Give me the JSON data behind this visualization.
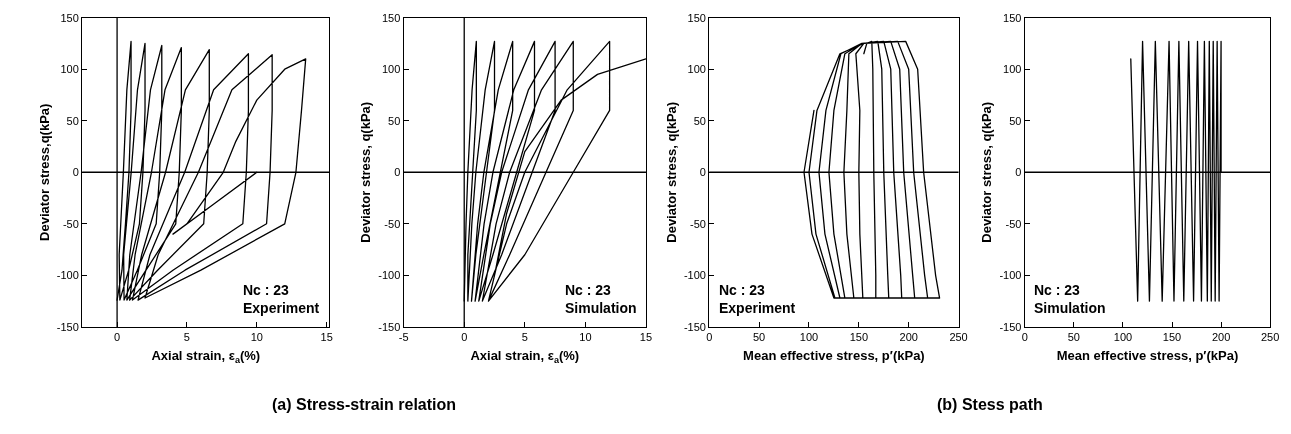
{
  "chart_data": [
    {
      "type": "line",
      "xlabel": "Axial strain, ε$_{a}$(%)",
      "ylabel": "Deviator stress,q(kPa)",
      "xlim": [
        -2.5,
        15.2
      ],
      "xticks": [
        0,
        5,
        10,
        15
      ],
      "ylim": [
        -150,
        150
      ],
      "yticks": [
        -150,
        -100,
        -50,
        0,
        50,
        100,
        150
      ],
      "ref_lines": [
        {
          "axis": "y",
          "value": 0,
          "color": "#000000"
        },
        {
          "axis": "x",
          "value": 0,
          "color": "#000000"
        }
      ],
      "annotations": [
        "Nc : 23\nExperiment",
        "(a) Stress-strain relation"
      ],
      "series": [
        {
          "color": "#000000",
          "x": [
            0,
            0.35,
            0.6,
            0.85,
            1,
            1,
            0.7,
            0.45,
            0.15,
            0.2,
            0.83,
            1.6,
            1.85,
            2,
            2,
            1.46,
            1.01,
            0.47,
            0.5,
            1.45,
            2.8,
            3.05,
            3.2,
            3.2,
            2.39,
            1.72,
            0.91,
            0.7,
            2.07,
            4.2,
            4.45,
            4.6,
            4.6,
            3.43,
            2.46,
            1.29,
            0.9,
            2.9,
            6.2,
            6.45,
            6.6,
            6.6,
            4.89,
            3.47,
            1.76,
            1.1,
            4.0,
            9.0,
            9.25,
            9.4,
            9.4,
            6.91,
            4.84,
            2.35,
            1.5,
            4.86,
            10.7,
            10.95,
            11.1,
            11.1,
            8.22,
            5.82,
            2.94,
            2,
            6,
            12,
            12.8,
            13.2,
            13.5,
            12,
            10,
            8.5,
            7.6,
            5,
            4,
            7,
            10
          ],
          "values": [
            -124,
            -95,
            -50,
            0,
            60,
            127,
            80,
            0,
            -80,
            -124,
            -95,
            -50,
            0,
            60,
            125,
            80,
            0,
            -80,
            -124,
            -95,
            -50,
            0,
            60,
            123,
            80,
            0,
            -80,
            -124,
            -95,
            -50,
            0,
            60,
            121,
            80,
            0,
            -80,
            -124,
            -95,
            -50,
            0,
            60,
            119,
            80,
            0,
            -80,
            -124,
            -95,
            -50,
            0,
            60,
            115,
            80,
            0,
            -80,
            -124,
            -95,
            -50,
            0,
            60,
            114,
            80,
            0,
            -80,
            -122,
            -95,
            -50,
            0,
            60,
            110,
            100,
            70,
            30,
            0,
            -50,
            -60,
            -30,
            0
          ]
        }
      ]
    },
    {
      "type": "line",
      "xlabel": "Axial strain, ε$_{a}$(%)",
      "ylabel": "Deviator stress, q(kPa)",
      "xlim": [
        -5,
        15
      ],
      "xticks": [
        -5,
        0,
        5,
        10,
        15
      ],
      "ylim": [
        -150,
        150
      ],
      "yticks": [
        -150,
        -100,
        -50,
        0,
        50,
        100,
        150
      ],
      "ref_lines": [
        {
          "axis": "y",
          "value": 0,
          "color": "#000000"
        },
        {
          "axis": "x",
          "value": 0,
          "color": "#000000"
        }
      ],
      "annotations": [
        "Nc : 23\nSimulation"
      ],
      "series": [
        {
          "color": "#000000",
          "x": [
            0,
            0.15,
            0.3,
            0.65,
            1,
            1,
            0.7,
            0.3,
            0.3,
            0.63,
            0.96,
            1.73,
            2.5,
            2.5,
            1.84,
            0.96,
            0.6,
            1.11,
            1.62,
            2.81,
            4,
            4,
            2.98,
            1.62,
            0.9,
            1.64,
            2.37,
            4.09,
            5.8,
            5.8,
            4.33,
            2.37,
            1.2,
            2.15,
            3.09,
            5.3,
            7.5,
            7.5,
            5.61,
            3.09,
            1.5,
            2.63,
            3.75,
            6.38,
            9,
            9,
            6.75,
            3.75,
            2,
            3.5,
            5,
            8.5,
            12,
            12,
            9,
            5,
            2,
            2.5,
            3.5,
            5,
            8,
            11,
            15
          ],
          "values": [
            -125,
            -50,
            0,
            80,
            127,
            60,
            0,
            -80,
            -125,
            -50,
            0,
            80,
            127,
            60,
            0,
            -80,
            -125,
            -50,
            0,
            80,
            127,
            60,
            0,
            -80,
            -125,
            -50,
            0,
            80,
            127,
            60,
            0,
            -80,
            -125,
            -50,
            0,
            80,
            127,
            60,
            0,
            -80,
            -125,
            -50,
            0,
            80,
            127,
            60,
            0,
            -80,
            -125,
            -50,
            0,
            80,
            127,
            60,
            0,
            -80,
            -125,
            -100,
            -40,
            20,
            70,
            95,
            110
          ]
        }
      ]
    },
    {
      "type": "line",
      "xlabel": "Mean effective stress, p′(kPa)",
      "ylabel": "Deviator stress, q(kPa)",
      "xlim": [
        0,
        250
      ],
      "xticks": [
        0,
        50,
        100,
        150,
        200,
        250
      ],
      "ylim": [
        -150,
        150
      ],
      "yticks": [
        -150,
        -100,
        -50,
        0,
        50,
        100,
        150
      ],
      "ref_lines": [
        {
          "axis": "y",
          "value": 0,
          "color": "#000000"
        }
      ],
      "annotations": [
        "Nc : 23\nExperiment",
        "(b) Stess path"
      ],
      "series": [
        {
          "color": "#000000",
          "x": [
            155,
            158,
            163,
            164,
            165,
            167,
            167,
            154,
            151,
            150,
            151,
            147,
            155,
            169,
            173,
            175,
            179,
            180,
            145,
            138,
            135,
            138,
            140,
            153,
            175,
            182,
            185,
            192,
            193,
            136,
            125,
            120,
            125,
            136,
            153,
            182,
            191,
            195,
            204,
            206,
            131,
            116,
            110,
            117,
            132,
            153,
            189,
            200,
            205,
            216,
            219,
            126,
            107,
            100,
            108,
            131,
            155,
            197,
            209,
            215,
            227,
            231,
            125,
            103,
            95,
            105
          ],
          "values": [
            115,
            125,
            127,
            100,
            0,
            -100,
            -122,
            -122,
            -60,
            0,
            60,
            115,
            125,
            127,
            100,
            0,
            -100,
            -122,
            -122,
            -60,
            0,
            60,
            115,
            125,
            127,
            100,
            0,
            -100,
            -122,
            -122,
            -60,
            0,
            60,
            115,
            125,
            127,
            100,
            0,
            -100,
            -122,
            -122,
            -60,
            0,
            60,
            115,
            125,
            127,
            100,
            0,
            -100,
            -122,
            -122,
            -60,
            0,
            60,
            115,
            125,
            127,
            100,
            0,
            -100,
            -122,
            -122,
            -60,
            0,
            60
          ]
        }
      ]
    },
    {
      "type": "line",
      "xlabel": "Mean effective stress, p′(kPa)",
      "ylabel": "Deviator stress, q(kPa)",
      "xlim": [
        0,
        250
      ],
      "xticks": [
        0,
        50,
        100,
        150,
        200,
        250
      ],
      "ylim": [
        -150,
        150
      ],
      "yticks": [
        -150,
        -100,
        -50,
        0,
        50,
        100,
        150
      ],
      "ref_lines": [
        {
          "axis": "y",
          "value": 0,
          "color": "#000000"
        }
      ],
      "annotations": [
        "Nc : 23\nSimulation"
      ],
      "series": [
        {
          "color": "#000000",
          "x": [
            200,
            200,
            198,
            196,
            194,
            192,
            190,
            188,
            186,
            183,
            180,
            176,
            172,
            167,
            162,
            157,
            152,
            147,
            140,
            133,
            127,
            120,
            115,
            108
          ],
          "values": [
            0,
            127,
            -125,
            127,
            -125,
            127,
            -125,
            127,
            -125,
            127,
            -125,
            127,
            -125,
            127,
            -125,
            127,
            -125,
            127,
            -125,
            127,
            -125,
            127,
            -125,
            110
          ]
        }
      ]
    }
  ]
}
